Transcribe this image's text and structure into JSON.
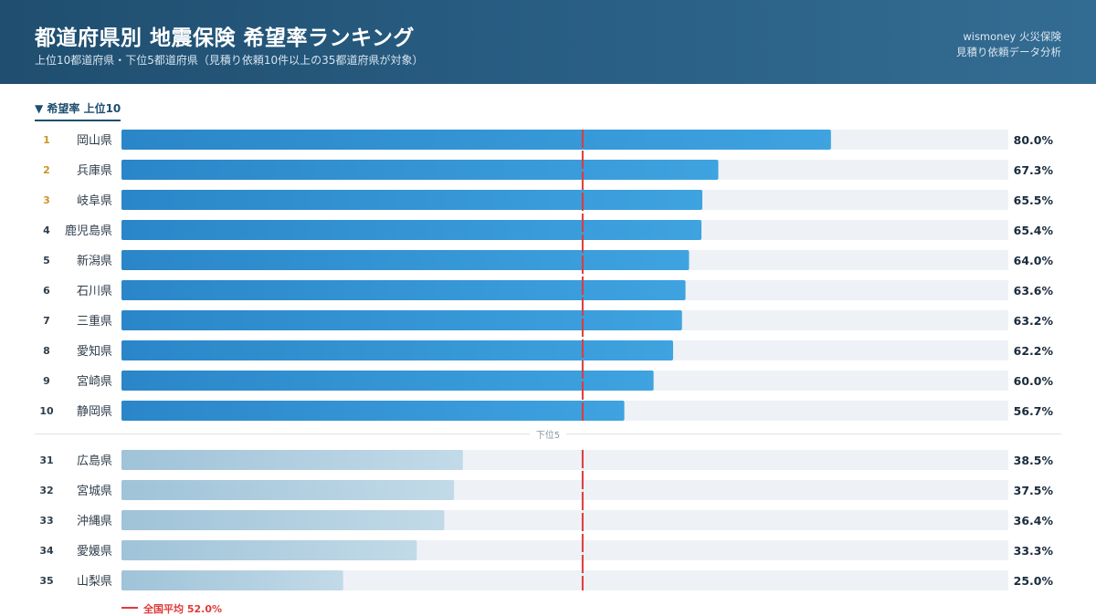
{
  "header": {
    "title": "都道府県別 地震保険 希望率ランキング",
    "subtitle": "上位10都道府県・下位5都道府県（見積り依頼10件以上の35都道府県が対象）",
    "brand_line1": "wismoney 火災保険",
    "brand_line2": "見積り依頼データ分析"
  },
  "section": {
    "top_label": "▼ 希望率 上位10",
    "bottom_label": "下位5"
  },
  "legend": {
    "average_label": "全国平均 52.0%"
  },
  "colors": {
    "top_bar_start": "#2a86c8",
    "top_bar_end": "#3fa3e0",
    "bottom_bar_start": "#9fc3d8",
    "bottom_bar_end": "#c2dae8",
    "track": "#eef2f6",
    "average_line": "#e03a3a",
    "rank_gold": "#c9962a",
    "rank_default": "#2f3e4c"
  },
  "chart_data": {
    "type": "bar",
    "orientation": "horizontal",
    "xlim": [
      0,
      100
    ],
    "unit": "%",
    "average": 52.0,
    "top": [
      {
        "rank": "1",
        "name": "岡山県",
        "value": 80.0,
        "label": "80.0%"
      },
      {
        "rank": "2",
        "name": "兵庫県",
        "value": 67.3,
        "label": "67.3%"
      },
      {
        "rank": "3",
        "name": "岐阜県",
        "value": 65.5,
        "label": "65.5%"
      },
      {
        "rank": "4",
        "name": "鹿児島県",
        "value": 65.4,
        "label": "65.4%"
      },
      {
        "rank": "5",
        "name": "新潟県",
        "value": 64.0,
        "label": "64.0%"
      },
      {
        "rank": "6",
        "name": "石川県",
        "value": 63.6,
        "label": "63.6%"
      },
      {
        "rank": "7",
        "name": "三重県",
        "value": 63.2,
        "label": "63.2%"
      },
      {
        "rank": "8",
        "name": "愛知県",
        "value": 62.2,
        "label": "62.2%"
      },
      {
        "rank": "9",
        "name": "宮崎県",
        "value": 60.0,
        "label": "60.0%"
      },
      {
        "rank": "10",
        "name": "静岡県",
        "value": 56.7,
        "label": "56.7%"
      }
    ],
    "bottom": [
      {
        "rank": "31",
        "name": "広島県",
        "value": 38.5,
        "label": "38.5%"
      },
      {
        "rank": "32",
        "name": "宮城県",
        "value": 37.5,
        "label": "37.5%"
      },
      {
        "rank": "33",
        "name": "沖縄県",
        "value": 36.4,
        "label": "36.4%"
      },
      {
        "rank": "34",
        "name": "愛媛県",
        "value": 33.3,
        "label": "33.3%"
      },
      {
        "rank": "35",
        "name": "山梨県",
        "value": 25.0,
        "label": "25.0%"
      }
    ]
  }
}
